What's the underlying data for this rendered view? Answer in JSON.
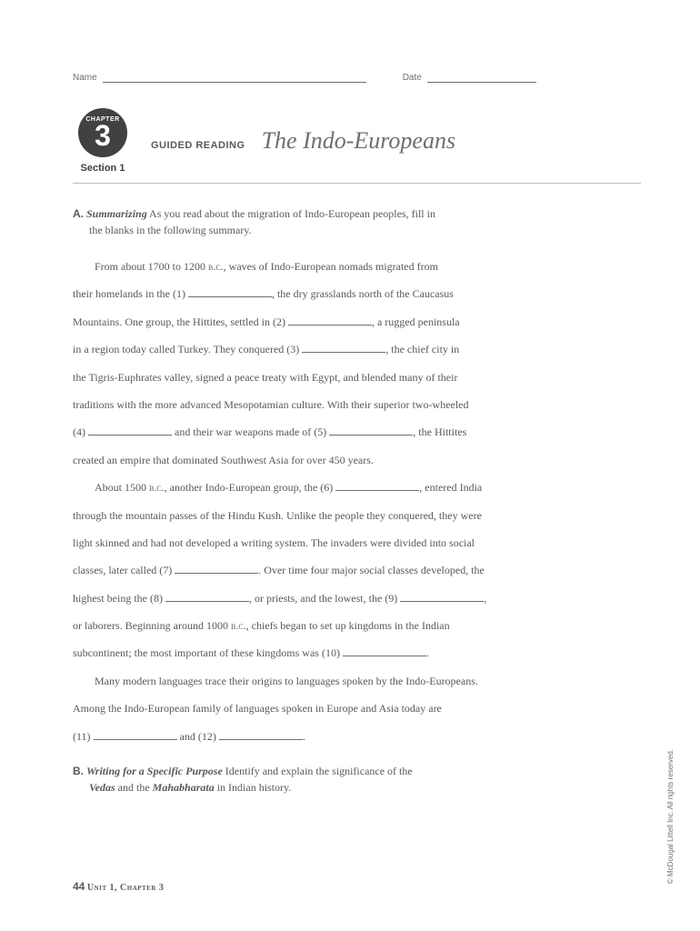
{
  "header": {
    "name_label": "Name",
    "date_label": "Date"
  },
  "chapter": {
    "chapter_word": "CHAPTER",
    "number": "3",
    "section": "Section 1",
    "guided": "GUIDED READING",
    "title": "The Indo-Europeans"
  },
  "sectionA": {
    "label": "A.",
    "title": "Summarizing",
    "intro": "As you read about the migration of Indo-European peoples, fill in",
    "intro2": "the blanks in the following summary.",
    "p1a": "From about 1700 to 1200 ",
    "bc": "b.c.",
    "p1b": ", waves of Indo-European nomads migrated from",
    "p2a": "their homelands in the (1) ",
    "p2b": ", the dry grasslands north of the Caucasus",
    "p3a": "Mountains. One group, the Hittites, settled in (2) ",
    "p3b": ", a rugged peninsula",
    "p4a": "in a region today called Turkey. They conquered (3) ",
    "p4b": ", the chief city in",
    "p5": "the Tigris-Euphrates valley, signed a peace treaty with Egypt, and blended many of their",
    "p6": "traditions with the more advanced Mesopotamian culture. With their superior two-wheeled",
    "p7a": "(4) ",
    "p7b": " and their war weapons made of (5) ",
    "p7c": ", the Hittites",
    "p8": "created an empire that dominated Southwest Asia for over 450 years.",
    "p9a": "About 1500 ",
    "p9b": ", another Indo-European group, the (6) ",
    "p9c": ", entered India",
    "p10": "through the mountain passes of the Hindu Kush. Unlike the people they conquered, they were",
    "p11": "light skinned and had not developed a writing system. The invaders were divided into social",
    "p12a": "classes, later called (7) ",
    "p12b": ". Over time four major social classes developed, the",
    "p13a": "highest being the (8) ",
    "p13b": ", or priests, and the lowest, the (9) ",
    "p13c": ",",
    "p14a": "or laborers. Beginning around 1000 ",
    "p14b": ", chiefs began to set up kingdoms in the Indian",
    "p15a": "subcontinent; the most important of these kingdoms was (10) ",
    "p15b": ".",
    "p16": "Many modern languages trace their origins to languages spoken by the Indo-Europeans.",
    "p17": "Among the Indo-European family of languages spoken in Europe and Asia today are",
    "p18a": "(11) ",
    "p18b": " and (12) ",
    "p18c": "."
  },
  "sectionB": {
    "label": "B.",
    "title": "Writing for a Specific Purpose",
    "text1": "Identify and explain the significance of the",
    "vedas": "Vedas",
    "text2": " and the ",
    "maha": "Mahabharata",
    "text3": " in Indian history."
  },
  "footer": {
    "page": "44",
    "unit": "Unit 1, Chapter 3"
  },
  "copyright": "© McDougal Littell Inc. All rights reserved."
}
